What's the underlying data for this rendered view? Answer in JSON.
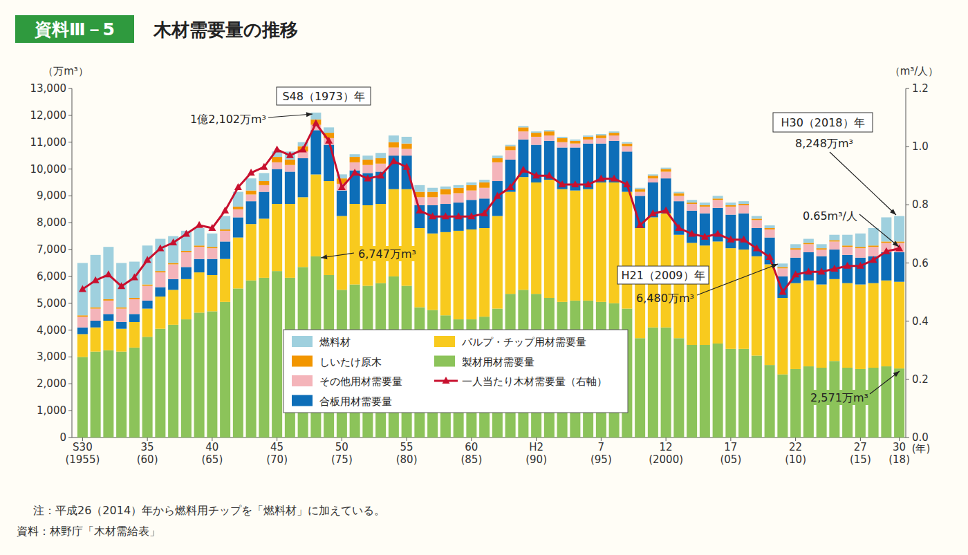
{
  "chart_data": {
    "type": "bar",
    "stacked": true,
    "grid": false,
    "figure_label": "資料Ⅲ－5",
    "title": "木材需要量の推移",
    "y_label": "（万m³）",
    "y2_label": "（m³/人）",
    "x_label": "(年)",
    "ylim": [
      0,
      13000
    ],
    "yticks": [
      0,
      {
        "value": 1000,
        "label": "1,000"
      },
      {
        "value": 2000,
        "label": "2,000"
      },
      {
        "value": 3000,
        "label": "3,000"
      },
      {
        "value": 4000,
        "label": "4,000"
      },
      {
        "value": 5000,
        "label": "5,000"
      },
      {
        "value": 6000,
        "label": "6,000"
      },
      {
        "value": 7000,
        "label": "7,000"
      },
      {
        "value": 8000,
        "label": "8,000"
      },
      {
        "value": 9000,
        "label": "9,000"
      },
      {
        "value": 10000,
        "label": "10,000"
      },
      {
        "value": 11000,
        "label": "11,000"
      },
      {
        "value": 12000,
        "label": "12,000"
      },
      {
        "value": 13000,
        "label": "13,000"
      }
    ],
    "y2lim": [
      0,
      1.2
    ],
    "y2ticks": [
      {
        "value": 0,
        "label": "0.0"
      },
      0.2,
      0.4,
      0.6,
      0.8,
      {
        "value": 1,
        "label": "1.0"
      },
      1.2
    ],
    "categories": [
      "S30\n(1955)",
      null,
      null,
      null,
      null,
      "35\n(60)",
      null,
      null,
      null,
      null,
      "40\n(65)",
      null,
      null,
      null,
      null,
      "45\n(70)",
      null,
      null,
      null,
      null,
      "50\n(75)",
      null,
      null,
      null,
      null,
      "55\n(80)",
      null,
      null,
      null,
      null,
      "60\n(85)",
      null,
      null,
      null,
      null,
      "H2\n(90)",
      null,
      null,
      null,
      null,
      "7\n(95)",
      null,
      null,
      null,
      null,
      "12\n(2000)",
      null,
      null,
      null,
      null,
      "17\n(05)",
      null,
      null,
      null,
      null,
      "22\n(10)",
      null,
      null,
      null,
      null,
      "27\n(15)",
      null,
      null,
      "30\n(18)"
    ],
    "series": [
      {
        "name": "製材用材需要量",
        "type": "bar",
        "color": "#8cc35a",
        "values": [
          3000,
          3200,
          3250,
          3200,
          3350,
          3750,
          4050,
          4200,
          4400,
          4650,
          4700,
          5050,
          5550,
          5850,
          5950,
          6200,
          5950,
          6350,
          6747,
          6050,
          5500,
          5700,
          5650,
          5750,
          6000,
          5650,
          4850,
          4750,
          4550,
          4400,
          4400,
          4500,
          4800,
          5350,
          5500,
          5350,
          5200,
          5050,
          5100,
          5100,
          5050,
          5000,
          4800,
          3700,
          4100,
          4100,
          3700,
          3450,
          3450,
          3500,
          3300,
          3300,
          3050,
          2700,
          2350,
          2550,
          2650,
          2600,
          2850,
          2600,
          2550,
          2600,
          2650,
          2571
        ]
      },
      {
        "name": "パルプ・チップ用材需要量",
        "type": "bar",
        "color": "#f8ca1e",
        "values": [
          850,
          900,
          1100,
          850,
          950,
          1050,
          1200,
          1300,
          1500,
          1500,
          1350,
          1600,
          1900,
          2100,
          2200,
          2500,
          2750,
          2600,
          3050,
          3500,
          2750,
          3000,
          3000,
          2950,
          3250,
          3600,
          2950,
          2850,
          3100,
          3300,
          3350,
          3300,
          3450,
          3800,
          4200,
          4150,
          4400,
          4200,
          4100,
          4150,
          4450,
          4500,
          4350,
          4100,
          4100,
          4250,
          3850,
          3800,
          3700,
          3800,
          3750,
          3700,
          3700,
          3750,
          2850,
          3200,
          3200,
          3100,
          3050,
          3150,
          3150,
          3150,
          3200,
          3229
        ]
      },
      {
        "name": "合板用材需要量",
        "type": "bar",
        "color": "#0d6eb8",
        "values": [
          250,
          250,
          250,
          250,
          300,
          300,
          350,
          400,
          450,
          500,
          600,
          650,
          750,
          850,
          1000,
          1300,
          1200,
          1450,
          1650,
          1350,
          950,
          1250,
          1200,
          1200,
          1250,
          1250,
          850,
          1050,
          1050,
          1050,
          1100,
          1100,
          1300,
          1200,
          1400,
          1400,
          1450,
          1550,
          1600,
          1700,
          1450,
          1550,
          1500,
          1200,
          1300,
          1300,
          1250,
          1200,
          1200,
          1250,
          1250,
          1350,
          1050,
          1000,
          800,
          950,
          1050,
          1050,
          1100,
          1050,
          1000,
          1000,
          1050,
          1100
        ]
      },
      {
        "name": "その他用材需要量",
        "type": "bar",
        "color": "#f4b4ba",
        "values": [
          400,
          450,
          500,
          500,
          550,
          550,
          550,
          550,
          550,
          450,
          400,
          400,
          300,
          250,
          250,
          250,
          250,
          250,
          200,
          250,
          250,
          300,
          300,
          300,
          300,
          250,
          300,
          300,
          350,
          350,
          350,
          400,
          700,
          350,
          300,
          300,
          200,
          200,
          150,
          150,
          200,
          200,
          200,
          150,
          150,
          250,
          200,
          250,
          250,
          300,
          300,
          300,
          300,
          300,
          300,
          300,
          300,
          250,
          300,
          300,
          350,
          350,
          350,
          350
        ]
      },
      {
        "name": "しいたけ原木",
        "type": "bar",
        "color": "#f29600",
        "values": [
          50,
          50,
          50,
          50,
          50,
          50,
          50,
          50,
          50,
          50,
          50,
          50,
          100,
          150,
          150,
          200,
          200,
          200,
          200,
          200,
          200,
          200,
          200,
          200,
          200,
          200,
          200,
          200,
          200,
          200,
          200,
          200,
          150,
          150,
          150,
          150,
          150,
          150,
          100,
          100,
          100,
          100,
          100,
          100,
          100,
          100,
          100,
          50,
          50,
          50,
          50,
          50,
          50,
          50,
          50,
          50,
          50,
          50,
          50,
          50,
          50,
          50,
          50,
          50
        ]
      },
      {
        "name": "燃料材",
        "type": "bar",
        "color": "#9fd0de",
        "values": [
          1950,
          1950,
          1950,
          1650,
          1350,
          1450,
          1200,
          1000,
          750,
          650,
          500,
          500,
          550,
          450,
          300,
          200,
          300,
          150,
          255,
          200,
          150,
          100,
          150,
          200,
          250,
          250,
          250,
          150,
          100,
          100,
          100,
          100,
          100,
          50,
          50,
          50,
          50,
          50,
          50,
          50,
          50,
          50,
          50,
          50,
          50,
          50,
          50,
          100,
          100,
          100,
          100,
          100,
          100,
          100,
          130,
          150,
          150,
          150,
          200,
          400,
          500,
          650,
          900,
          948
        ]
      },
      {
        "name": "一人当たり木材需要量（右軸）",
        "type": "line",
        "axis": "y2",
        "marker": "triangle",
        "color": "#c8102e",
        "values": [
          0.51,
          0.54,
          0.56,
          0.52,
          0.55,
          0.61,
          0.65,
          0.67,
          0.7,
          0.73,
          0.72,
          0.78,
          0.86,
          0.91,
          0.93,
          0.99,
          0.97,
          0.99,
          1.08,
          1.02,
          0.86,
          0.91,
          0.89,
          0.9,
          0.95,
          0.93,
          0.78,
          0.76,
          0.76,
          0.76,
          0.76,
          0.77,
          0.83,
          0.86,
          0.92,
          0.9,
          0.9,
          0.87,
          0.87,
          0.87,
          0.89,
          0.89,
          0.87,
          0.73,
          0.77,
          0.78,
          0.72,
          0.7,
          0.69,
          0.7,
          0.68,
          0.68,
          0.65,
          0.62,
          0.5,
          0.56,
          0.57,
          0.57,
          0.58,
          0.59,
          0.59,
          0.61,
          0.64,
          0.65
        ]
      }
    ],
    "annotations": [
      {
        "text": "S48（1973）年"
      },
      {
        "text": "1億2,102万m³"
      },
      {
        "text": "6,747万m³"
      },
      {
        "text": "H30（2018）年"
      },
      {
        "text": "8,248万m³"
      },
      {
        "text": "0.65m³/人"
      },
      {
        "text": "H21（2009）年"
      },
      {
        "text": "6,480万m³"
      },
      {
        "text": "2,571万m³"
      }
    ],
    "notes": [
      "注：平成26（2014）年から燃料用チップを「燃料材」に加えている。",
      "資料：林野庁「木材需給表」"
    ]
  }
}
